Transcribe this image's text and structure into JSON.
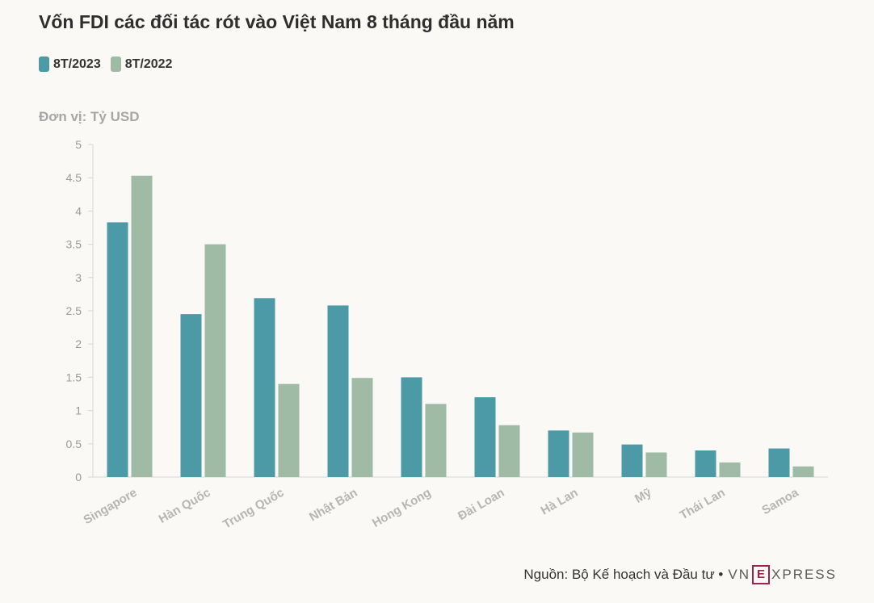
{
  "title": "Vốn FDI các đối tác rót vào Việt Nam 8 tháng đầu năm",
  "unit_label": "Đơn vị: Tỷ USD",
  "source_text": "Nguồn: Bộ Kế hoạch và Đầu tư •",
  "logo": {
    "left": "VN",
    "box": "E",
    "right": "XPRESS"
  },
  "colors": {
    "series_2023": "#4b9aa5",
    "series_2022": "#9fbba6",
    "background": "#faf9f5",
    "axis": "#d6d6d6",
    "logo_accent": "#9f224e"
  },
  "chart_data": {
    "type": "bar",
    "title": "Vốn FDI các đối tác rót vào Việt Nam 8 tháng đầu năm",
    "ylabel": "Đơn vị: Tỷ USD",
    "xlabel": "",
    "ylim": [
      0,
      5
    ],
    "yticks": [
      "0",
      "0.5",
      "1",
      "1.5",
      "2",
      "2.5",
      "3",
      "3.5",
      "4",
      "4.5",
      "5"
    ],
    "grid": false,
    "legend_position": "top-left",
    "categories": [
      "Singapore",
      "Hàn Quốc",
      "Trung Quốc",
      "Nhật Bản",
      "Hong Kong",
      "Đài Loan",
      "Hà Lan",
      "Mỹ",
      "Thái Lan",
      "Samoa"
    ],
    "series": [
      {
        "name": "8T/2023",
        "color": "#4b9aa5",
        "values": [
          3.83,
          2.45,
          2.69,
          2.58,
          1.5,
          1.2,
          0.7,
          0.49,
          0.4,
          0.43
        ]
      },
      {
        "name": "8T/2022",
        "color": "#9fbba6",
        "values": [
          4.53,
          3.5,
          1.4,
          1.49,
          1.1,
          0.78,
          0.67,
          0.37,
          0.22,
          0.16
        ]
      }
    ]
  }
}
